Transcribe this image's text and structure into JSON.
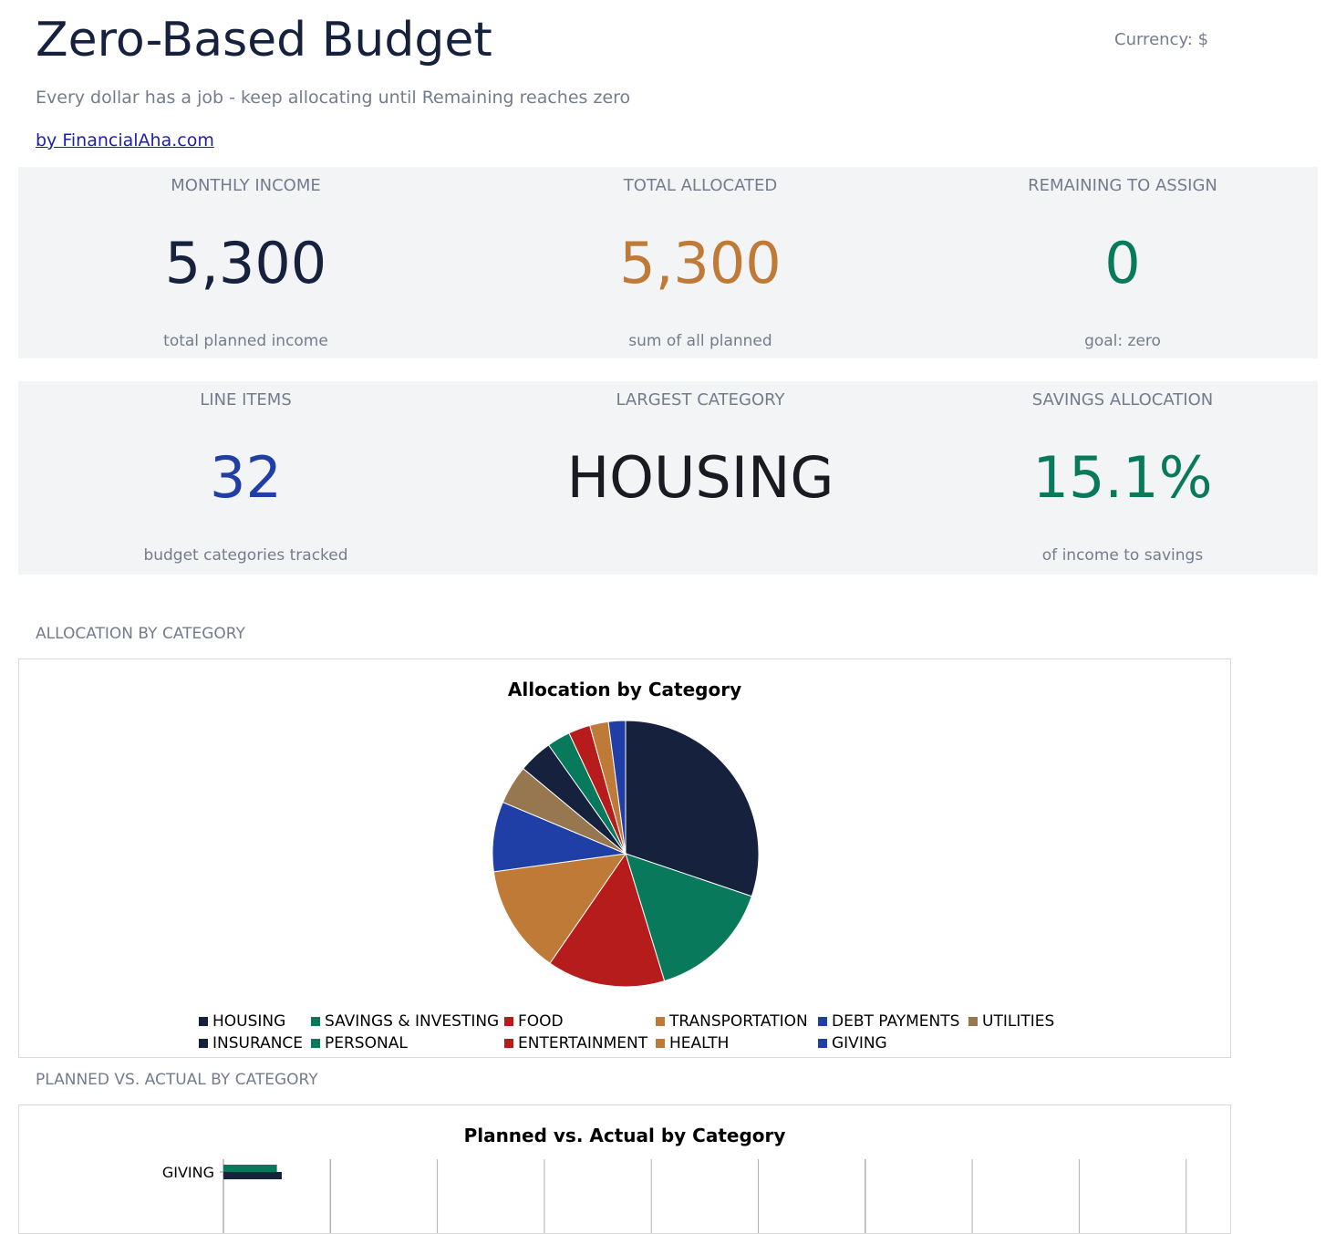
{
  "header": {
    "title": "Zero-Based Budget",
    "currency": "Currency: $",
    "subtitle": "Every dollar has a job - keep allocating until Remaining reaches zero",
    "byline": "by FinancialAha.com"
  },
  "kpis": {
    "monthly_income": {
      "label": "MONTHLY INCOME",
      "value": "5,300",
      "note": "total planned income",
      "color": "#15213d"
    },
    "total_allocated": {
      "label": "TOTAL ALLOCATED",
      "value": "5,300",
      "note": "sum of all planned",
      "color": "#c07a37"
    },
    "remaining": {
      "label": "REMAINING TO ASSIGN",
      "value": "0",
      "note": "goal: zero",
      "color": "#08795a"
    },
    "line_items": {
      "label": "LINE ITEMS",
      "value": "32",
      "note": "budget categories tracked",
      "color": "#1f3ea6"
    },
    "largest_category": {
      "label": "LARGEST CATEGORY",
      "value": "HOUSING",
      "note": "",
      "color": "#1a1a22"
    },
    "savings_allocation": {
      "label": "SAVINGS ALLOCATION",
      "value": "15.1%",
      "note": "of income to savings",
      "color": "#08795a"
    }
  },
  "sections": {
    "allocation_label": "ALLOCATION BY CATEGORY",
    "planned_actual_label": "PLANNED VS. ACTUAL BY CATEGORY"
  },
  "chart_data": [
    {
      "type": "pie",
      "title": "Allocation by Category",
      "legend_position": "bottom",
      "categories": [
        "HOUSING",
        "SAVINGS & INVESTING",
        "FOOD",
        "TRANSPORTATION",
        "DEBT PAYMENTS",
        "UTILITIES",
        "INSURANCE",
        "PERSONAL",
        "ENTERTAINMENT",
        "HEALTH",
        "GIVING"
      ],
      "values": [
        1600,
        800,
        760,
        700,
        450,
        250,
        220,
        150,
        140,
        120,
        110
      ],
      "colors": [
        "#15213d",
        "#08795a",
        "#b71c1c",
        "#c07a37",
        "#1f3ea6",
        "#977750",
        "#15213d",
        "#08795a",
        "#b71c1c",
        "#c07a37",
        "#1f3ea6"
      ]
    },
    {
      "type": "bar",
      "orientation": "horizontal",
      "title": "Planned vs. Actual by Category",
      "categories": [
        "GIVING"
      ],
      "series": [
        {
          "values": [
            110
          ],
          "color": "#08795a"
        },
        {
          "values": [
            120
          ],
          "color": "#15213d"
        }
      ],
      "grid": true
    }
  ]
}
